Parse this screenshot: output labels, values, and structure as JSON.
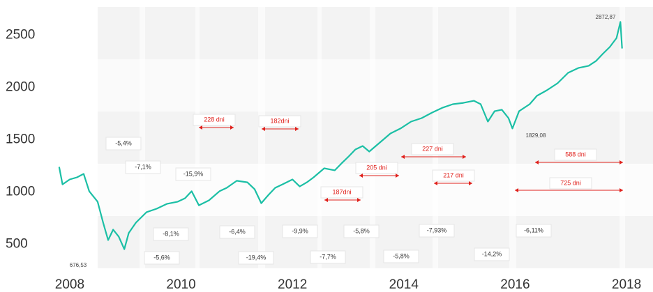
{
  "chart_data": {
    "type": "line",
    "x": [
      2007.81,
      2007.87,
      2008.0,
      2008.13,
      2008.25,
      2008.35,
      2008.5,
      2008.6,
      2008.69,
      2008.78,
      2008.88,
      2008.98,
      2009.06,
      2009.19,
      2009.38,
      2009.56,
      2009.75,
      2009.94,
      2010.07,
      2010.19,
      2010.32,
      2010.5,
      2010.69,
      2010.82,
      2011.0,
      2011.19,
      2011.32,
      2011.44,
      2011.57,
      2011.69,
      2011.82,
      2012.0,
      2012.13,
      2012.26,
      2012.38,
      2012.57,
      2012.76,
      2012.88,
      2013.01,
      2013.13,
      2013.26,
      2013.38,
      2013.57,
      2013.76,
      2013.94,
      2014.13,
      2014.32,
      2014.51,
      2014.7,
      2014.88,
      2015.07,
      2015.26,
      2015.38,
      2015.51,
      2015.63,
      2015.76,
      2015.88,
      2015.95,
      2016.07,
      2016.26,
      2016.39,
      2016.57,
      2016.76,
      2016.95,
      2017.14,
      2017.32,
      2017.45,
      2017.57,
      2017.7,
      2017.82,
      2017.89,
      2017.92
    ],
    "series": [
      {
        "color": "#1bbfa5",
        "values": [
          1240,
          1073,
          1120,
          1140,
          1173,
          1007,
          907,
          707,
          540,
          640,
          573,
          453,
          607,
          707,
          807,
          840,
          887,
          907,
          940,
          1007,
          873,
          920,
          1007,
          1040,
          1107,
          1093,
          1027,
          893,
          973,
          1040,
          1073,
          1120,
          1053,
          1093,
          1140,
          1227,
          1207,
          1273,
          1340,
          1407,
          1440,
          1387,
          1473,
          1560,
          1607,
          1673,
          1707,
          1760,
          1807,
          1840,
          1853,
          1873,
          1840,
          1673,
          1773,
          1787,
          1707,
          1607,
          1773,
          1840,
          1920,
          1973,
          2040,
          2140,
          2187,
          2207,
          2253,
          2320,
          2387,
          2473,
          2627,
          2373
        ]
      }
    ],
    "xlim": [
      2007.7,
      2018.4
    ],
    "xticks": [
      2008,
      2010,
      2012,
      2014,
      2016,
      2018
    ],
    "ylim": [
      270,
      2770
    ],
    "yticks": [
      500,
      1000,
      1500,
      2000,
      2500
    ],
    "drawdowns": [
      "-5,4%",
      "-7,1%",
      "-15,9%",
      "-8,1%",
      "-5,6%",
      "-6,4%",
      "-19,4%",
      "-9,9%",
      "-7,7%",
      "-5,8%",
      "-5,8%",
      "-7,93%",
      "-14,2%",
      "-6,11%"
    ],
    "durations": [
      "228 dni",
      "182dni",
      "227 dni",
      "205 dni",
      "187dni",
      "217 dni",
      "588 dni",
      "725 dni"
    ],
    "point_labels": [
      "2872,87",
      "676,53",
      "1829,08"
    ]
  }
}
